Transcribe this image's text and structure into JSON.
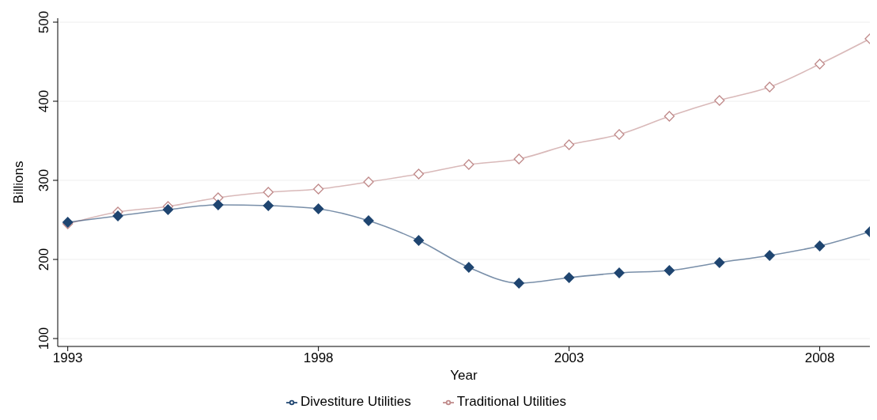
{
  "chart_data": {
    "type": "line",
    "xlabel": "Year",
    "ylabel": "Billions",
    "x": [
      1993,
      1994,
      1995,
      1996,
      1997,
      1998,
      1999,
      2000,
      2001,
      2002,
      2003,
      2004,
      2005,
      2006,
      2007,
      2008,
      2009
    ],
    "series": [
      {
        "name": "Divestiture Utilities",
        "color": "#1f4570",
        "values": [
          247,
          255,
          263,
          269,
          268,
          264,
          249,
          224,
          190,
          170,
          177,
          183,
          186,
          196,
          205,
          217,
          235
        ]
      },
      {
        "name": "Traditional Utilities",
        "color": "#c08a8a",
        "values": [
          245,
          260,
          267,
          278,
          285,
          289,
          298,
          308,
          320,
          327,
          345,
          358,
          381,
          401,
          418,
          447,
          479
        ]
      }
    ],
    "xlim": [
      1992.8,
      2009
    ],
    "xticks": [
      1993,
      1998,
      2003,
      2008
    ],
    "ylim": [
      90,
      505
    ],
    "yticks": [
      100,
      200,
      300,
      400,
      500
    ],
    "grid": "y",
    "legend": "bottom",
    "marker": "diamond",
    "line_style": "solid"
  }
}
